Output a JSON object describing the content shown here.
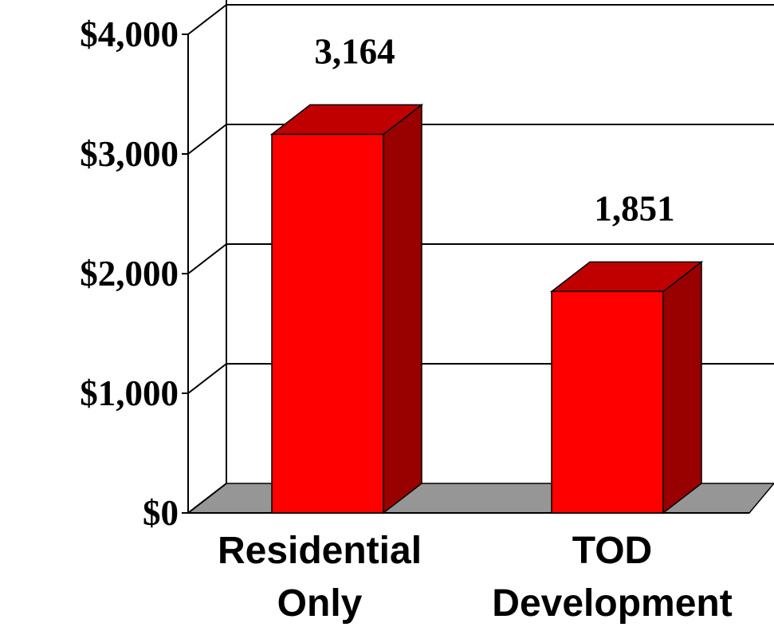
{
  "chart_data": {
    "type": "bar",
    "style": "3d",
    "categories": [
      [
        "Residential",
        "Only"
      ],
      [
        "TOD",
        "Development"
      ]
    ],
    "values": [
      3164,
      1851
    ],
    "data_labels": [
      "3,164",
      "1,851"
    ],
    "y_ticks": [
      {
        "value": 0,
        "label": "$0"
      },
      {
        "value": 1000,
        "label": "$1,000"
      },
      {
        "value": 2000,
        "label": "$2,000"
      },
      {
        "value": 3000,
        "label": "$3,000"
      },
      {
        "value": 4000,
        "label": "$4,000"
      }
    ],
    "ylim": [
      0,
      4000
    ],
    "grid": true,
    "colors": {
      "bar_front": "#ff0000",
      "bar_top": "#c00000",
      "bar_side": "#990000",
      "floor": "#969696",
      "grid": "#000000"
    }
  }
}
